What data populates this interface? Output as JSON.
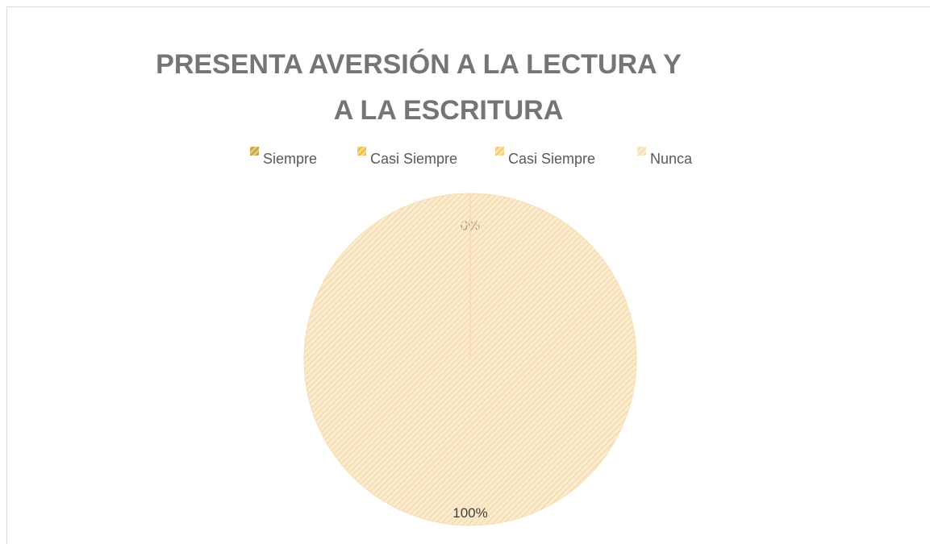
{
  "chart_data": {
    "type": "pie",
    "title": [
      "PRESENTA AVERSIÓN A LA LECTURA Y",
      "A LA ESCRITURA"
    ],
    "categories": [
      "Siempre",
      "Casi Siempre",
      "Casi Siempre",
      "Nunca"
    ],
    "values": [
      0,
      0,
      0,
      100
    ],
    "value_labels": [
      null,
      null,
      "0%",
      "100%"
    ],
    "colors": [
      "#c9a02a",
      "#f2b72a",
      "#f6c86a",
      "#f8ddb0"
    ],
    "legend": "top"
  }
}
